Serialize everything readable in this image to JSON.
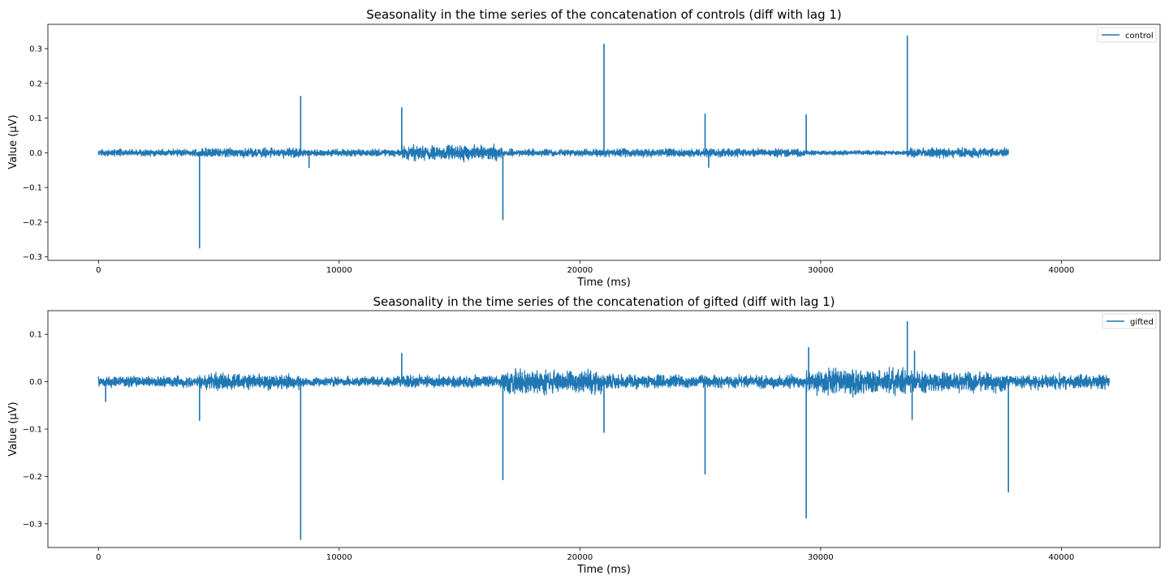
{
  "chart_data": [
    {
      "type": "line",
      "title": "Seasonality in the time series of the concatenation of controls (diff with lag 1)",
      "xlabel": "Time (ms)",
      "ylabel": "Value (μV)",
      "xlim": [
        -2100,
        44100
      ],
      "ylim": [
        -0.31,
        0.37
      ],
      "xticks": [
        0,
        10000,
        20000,
        30000,
        40000
      ],
      "yticks": [
        -0.3,
        -0.2,
        -0.1,
        0.0,
        0.1,
        0.2,
        0.3
      ],
      "xtick_labels": [
        "0",
        "10000",
        "20000",
        "30000",
        "40000"
      ],
      "ytick_labels": [
        "−0.3",
        "−0.2",
        "−0.1",
        "0.0",
        "0.1",
        "0.2",
        "0.3"
      ],
      "grid": false,
      "legend_position": "top-right",
      "series": [
        {
          "name": "control",
          "color": "#1f77b4",
          "x_range": [
            0,
            37800
          ],
          "noise_segments": [
            {
              "from": 0,
              "to": 4200,
              "amp": 0.006
            },
            {
              "from": 4200,
              "to": 8400,
              "amp": 0.008
            },
            {
              "from": 8400,
              "to": 12600,
              "amp": 0.006
            },
            {
              "from": 12600,
              "to": 16800,
              "amp": 0.013
            },
            {
              "from": 16800,
              "to": 21000,
              "amp": 0.006
            },
            {
              "from": 21000,
              "to": 25200,
              "amp": 0.007
            },
            {
              "from": 25200,
              "to": 29400,
              "amp": 0.007
            },
            {
              "from": 29400,
              "to": 33600,
              "amp": 0.004
            },
            {
              "from": 33600,
              "to": 37800,
              "amp": 0.008
            }
          ],
          "spikes": [
            {
              "x": 4200,
              "y": -0.275
            },
            {
              "x": 8400,
              "y": 0.163
            },
            {
              "x": 8750,
              "y": -0.043
            },
            {
              "x": 12600,
              "y": 0.13
            },
            {
              "x": 16800,
              "y": -0.193
            },
            {
              "x": 21000,
              "y": 0.313
            },
            {
              "x": 25200,
              "y": 0.112
            },
            {
              "x": 25350,
              "y": -0.042
            },
            {
              "x": 29400,
              "y": 0.11
            },
            {
              "x": 33600,
              "y": 0.337
            }
          ]
        }
      ]
    },
    {
      "type": "line",
      "title": "Seasonality in the time series of the concatenation of gifted (diff with lag 1)",
      "xlabel": "Time (ms)",
      "ylabel": "Value (μV)",
      "xlim": [
        -2100,
        44100
      ],
      "ylim": [
        -0.35,
        0.15
      ],
      "xticks": [
        0,
        10000,
        20000,
        30000,
        40000
      ],
      "yticks": [
        -0.3,
        -0.2,
        -0.1,
        0.0,
        0.1
      ],
      "xtick_labels": [
        "0",
        "10000",
        "20000",
        "30000",
        "40000"
      ],
      "ytick_labels": [
        "−0.3",
        "−0.2",
        "−0.1",
        "0.0",
        "0.1"
      ],
      "grid": false,
      "legend_position": "top-right",
      "series": [
        {
          "name": "gifted",
          "color": "#1f77b4",
          "x_range": [
            0,
            42000
          ],
          "noise_segments": [
            {
              "from": 0,
              "to": 4200,
              "amp": 0.007
            },
            {
              "from": 4200,
              "to": 8400,
              "amp": 0.01
            },
            {
              "from": 8400,
              "to": 12600,
              "amp": 0.006
            },
            {
              "from": 12600,
              "to": 16800,
              "amp": 0.008
            },
            {
              "from": 16800,
              "to": 21000,
              "amp": 0.015
            },
            {
              "from": 21000,
              "to": 25200,
              "amp": 0.009
            },
            {
              "from": 25200,
              "to": 29400,
              "amp": 0.008
            },
            {
              "from": 29400,
              "to": 33600,
              "amp": 0.017
            },
            {
              "from": 33600,
              "to": 37800,
              "amp": 0.013
            },
            {
              "from": 37800,
              "to": 42000,
              "amp": 0.009
            }
          ],
          "spikes": [
            {
              "x": 300,
              "y": -0.042
            },
            {
              "x": 4200,
              "y": -0.082
            },
            {
              "x": 8400,
              "y": -0.333
            },
            {
              "x": 12600,
              "y": 0.06
            },
            {
              "x": 16800,
              "y": -0.207
            },
            {
              "x": 21000,
              "y": -0.107
            },
            {
              "x": 25200,
              "y": -0.195
            },
            {
              "x": 29400,
              "y": -0.288
            },
            {
              "x": 29500,
              "y": 0.072
            },
            {
              "x": 33600,
              "y": 0.127
            },
            {
              "x": 33800,
              "y": -0.08
            },
            {
              "x": 33900,
              "y": 0.065
            },
            {
              "x": 37800,
              "y": -0.233
            }
          ]
        }
      ]
    }
  ]
}
